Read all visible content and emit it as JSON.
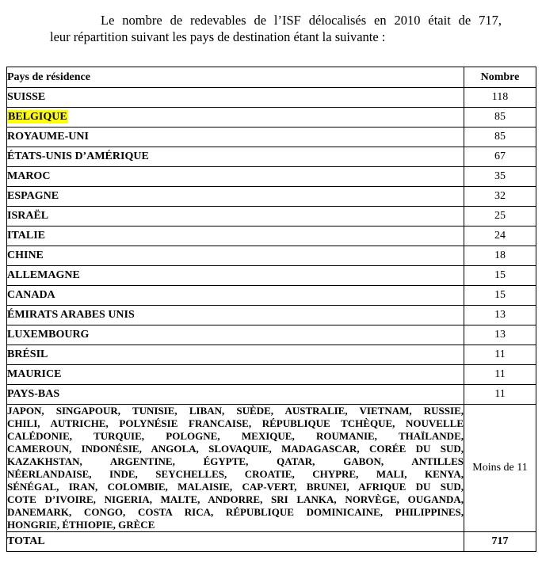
{
  "intro": {
    "line1": "Le nombre de redevables de l’ISF délocalisés en 2010 était de 717,",
    "line2": "leur répartition suivant les pays de destination étant la suivante :"
  },
  "table": {
    "headers": {
      "country": "Pays de résidence",
      "count": "Nombre"
    },
    "rows": [
      {
        "country": "SUISSE",
        "count": "118",
        "highlight": false
      },
      {
        "country": "BELGIQUE",
        "count": "85",
        "highlight": true
      },
      {
        "country": "ROYAUME-UNI",
        "count": "85",
        "highlight": false
      },
      {
        "country": "ÉTATS-UNIS D’AMÉRIQUE",
        "count": "67",
        "highlight": false
      },
      {
        "country": "MAROC",
        "count": "35",
        "highlight": false
      },
      {
        "country": "ESPAGNE",
        "count": "32",
        "highlight": false
      },
      {
        "country": "ISRAËL",
        "count": "25",
        "highlight": false
      },
      {
        "country": "ITALIE",
        "count": "24",
        "highlight": false
      },
      {
        "country": "CHINE",
        "count": "18",
        "highlight": false
      },
      {
        "country": "ALLEMAGNE",
        "count": "15",
        "highlight": false
      },
      {
        "country": "CANADA",
        "count": "15",
        "highlight": false
      },
      {
        "country": "ÉMIRATS ARABES UNIS",
        "count": "13",
        "highlight": false
      },
      {
        "country": "LUXEMBOURG",
        "count": "13",
        "highlight": false
      },
      {
        "country": "BRÉSIL",
        "count": "11",
        "highlight": false
      },
      {
        "country": "MAURICE",
        "count": "11",
        "highlight": false
      },
      {
        "country": "PAYS-BAS",
        "count": "11",
        "highlight": false
      }
    ],
    "others": {
      "lines": [
        "JAPON, SINGAPOUR, TUNISIE, LIBAN, SUÈDE, AUSTRALIE, VIETNAM, RUSSIE,",
        "CHILI, AUTRICHE, POLYNÉSIE FRANCAISE, RÉPUBLIQUE TCHÈQUE, NOUVELLE",
        "CALÉDONIE, TURQUIE, POLOGNE, MEXIQUE, ROUMANIE, THAÏLANDE,",
        "CAMEROUN, INDONÉSIE, ANGOLA, SLOVAQUIE, MADAGASCAR, CORÉE DU SUD,",
        "KAZAKHSTAN, ARGENTINE, ÉGYPTE, QATAR, GABON, ANTILLES",
        "NÉERLANDAISE, INDE, SEYCHELLES, CROATIE, CHYPRE, MALI, KENYA,",
        "SÉNÉGAL, IRAN, COLOMBIE, MALAISIE, CAP-VERT, BRUNEI, AFRIQUE DU SUD,",
        "COTE D’IVOIRE, NIGERIA, MALTE, ANDORRE, SRI LANKA, NORVÈGE, OUGANDA,",
        "DANEMARK, CONGO, COSTA RICA, RÉPUBLIQUE DOMINICAINE, PHILIPPINES,",
        "HONGRIE, ÉTHIOPIE, GRÈCE"
      ],
      "count": "Moins de 11"
    },
    "total": {
      "label": "TOTAL",
      "count": "717"
    }
  },
  "colors": {
    "highlight": "#ffff00",
    "border": "#000000",
    "text": "#000000",
    "background": "#ffffff"
  }
}
